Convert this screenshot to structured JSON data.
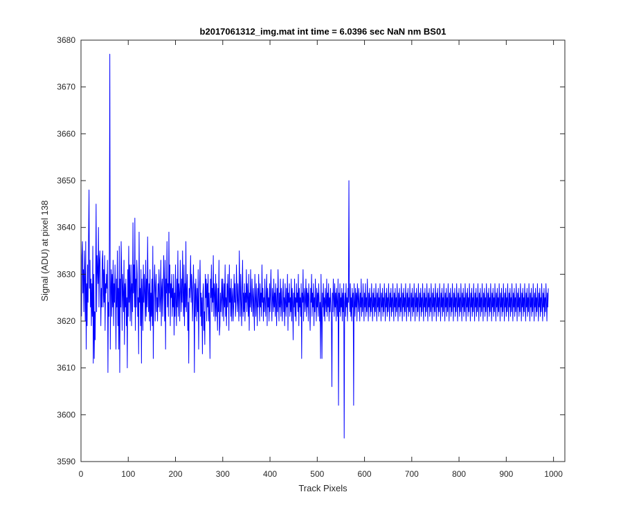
{
  "chart_data": {
    "type": "line",
    "title": "b2017061312_img.mat int time = 6.0396 sec  NaN nm BS01",
    "xlabel": "Track Pixels",
    "ylabel": "Signal (ADU) at pixel 138",
    "xlim": [
      0,
      1024
    ],
    "ylim": [
      3590,
      3680
    ],
    "x_ticks": [
      0,
      100,
      200,
      300,
      400,
      500,
      600,
      700,
      800,
      900,
      1000
    ],
    "y_ticks": [
      3590,
      3600,
      3610,
      3620,
      3630,
      3640,
      3650,
      3660,
      3670,
      3680
    ],
    "grid": false,
    "box": true,
    "line_color": "#0000ff",
    "series": [
      {
        "x_start": 1,
        "x_step": 1,
        "values": [
          3621,
          3634,
          3637,
          3626,
          3631,
          3622,
          3635,
          3629,
          3620,
          3637,
          3614,
          3628,
          3619,
          3632,
          3624,
          3638,
          3648,
          3627,
          3633,
          3623,
          3629,
          3619,
          3628,
          3621,
          3636,
          3611,
          3630,
          3612,
          3622,
          3616,
          3629,
          3645,
          3622,
          3634,
          3631,
          3628,
          3640,
          3623,
          3633,
          3635,
          3629,
          3619,
          3627,
          3623,
          3633,
          3635,
          3623,
          3631,
          3624,
          3634,
          3618,
          3628,
          3626,
          3630,
          3627,
          3633,
          3609,
          3624,
          3621,
          3635,
          3677,
          3614,
          3626,
          3631,
          3621,
          3630,
          3623,
          3633,
          3619,
          3628,
          3624,
          3632,
          3626,
          3614,
          3629,
          3623,
          3635,
          3619,
          3627,
          3614,
          3636,
          3609,
          3629,
          3623,
          3637,
          3631,
          3618,
          3630,
          3626,
          3622,
          3633,
          3615,
          3628,
          3623,
          3629,
          3619,
          3625,
          3610,
          3631,
          3621,
          3636,
          3624,
          3632,
          3620,
          3627,
          3632,
          3619,
          3628,
          3622,
          3641,
          3626,
          3632,
          3623,
          3642,
          3618,
          3629,
          3623,
          3633,
          3630,
          3621,
          3625,
          3613,
          3639,
          3624,
          3627,
          3619,
          3631,
          3611,
          3629,
          3625,
          3618,
          3632,
          3624,
          3630,
          3626,
          3620,
          3633,
          3621,
          3629,
          3623,
          3638,
          3627,
          3622,
          3628,
          3620,
          3631,
          3618,
          3626,
          3621,
          3629,
          3619,
          3636,
          3612,
          3625,
          3628,
          3632,
          3620,
          3627,
          3630,
          3622,
          3625,
          3620,
          3628,
          3623,
          3631,
          3627,
          3622,
          3625,
          3633,
          3619,
          3627,
          3629,
          3621,
          3626,
          3634,
          3628,
          3620,
          3633,
          3614,
          3629,
          3626,
          3637,
          3623,
          3628,
          3621,
          3639,
          3626,
          3632,
          3619,
          3628,
          3625,
          3630,
          3621,
          3627,
          3623,
          3630,
          3617,
          3626,
          3621,
          3632,
          3624,
          3619,
          3629,
          3623,
          3635,
          3621,
          3628,
          3626,
          3620,
          3633,
          3627,
          3622,
          3629,
          3624,
          3635,
          3626,
          3621,
          3632,
          3619,
          3628,
          3623,
          3637,
          3622,
          3626,
          3630,
          3618,
          3624,
          3611,
          3627,
          3625,
          3628,
          3634,
          3624,
          3630,
          3627,
          3620,
          3626,
          3632,
          3625,
          3609,
          3628,
          3621,
          3629,
          3625,
          3620,
          3627,
          3622,
          3631,
          3614,
          3624,
          3628,
          3633,
          3621,
          3626,
          3619,
          3625,
          3613,
          3626,
          3628,
          3618,
          3622,
          3615,
          3630,
          3625,
          3629,
          3620,
          3628,
          3623,
          3630,
          3620,
          3626,
          3621,
          3612,
          3629,
          3625,
          3632,
          3622,
          3627,
          3624,
          3634,
          3621,
          3628,
          3626,
          3620,
          3630,
          3621,
          3628,
          3623,
          3618,
          3627,
          3622,
          3633,
          3617,
          3619,
          3626,
          3622,
          3625,
          3629,
          3621,
          3629,
          3625,
          3620,
          3628,
          3623,
          3632,
          3621,
          3625,
          3619,
          3628,
          3623,
          3630,
          3626,
          3618,
          3632,
          3624,
          3627,
          3621,
          3629,
          3620,
          3625,
          3627,
          3620,
          3623,
          3630,
          3624,
          3628,
          3621,
          3624,
          3632,
          3626,
          3622,
          3628,
          3624,
          3620,
          3635,
          3627,
          3621,
          3630,
          3624,
          3619,
          3627,
          3633,
          3621,
          3626,
          3622,
          3628,
          3620,
          3626,
          3624,
          3631,
          3622,
          3628,
          3625,
          3621,
          3630,
          3618,
          3626,
          3623,
          3631,
          3624,
          3622,
          3629,
          3625,
          3621,
          3627,
          3623,
          3618,
          3630,
          3625,
          3621,
          3628,
          3624,
          3619,
          3627,
          3623,
          3630,
          3625,
          3620,
          3628,
          3623,
          3626,
          3621,
          3632,
          3624,
          3627,
          3620,
          3625,
          3622,
          3629,
          3624,
          3621,
          3626,
          3630,
          3619,
          3627,
          3623,
          3625,
          3620,
          3628,
          3622,
          3626,
          3631,
          3624,
          3620,
          3627,
          3625,
          3622,
          3629,
          3623,
          3626,
          3621,
          3628,
          3624,
          3619,
          3627,
          3622,
          3631,
          3625,
          3620,
          3626,
          3623,
          3629,
          3621,
          3627,
          3624,
          3620,
          3626,
          3629,
          3622,
          3625,
          3619,
          3628,
          3624,
          3621,
          3627,
          3623,
          3630,
          3618,
          3626,
          3624,
          3628,
          3621,
          3625,
          3622,
          3629,
          3620,
          3627,
          3624,
          3616,
          3626,
          3623,
          3629,
          3621,
          3625,
          3620,
          3628,
          3624,
          3626,
          3622,
          3630,
          3619,
          3627,
          3623,
          3625,
          3621,
          3628,
          3612,
          3626,
          3624,
          3631,
          3620,
          3625,
          3627,
          3622,
          3624,
          3629,
          3621,
          3627,
          3623,
          3626,
          3620,
          3628,
          3625,
          3622,
          3618,
          3627,
          3624,
          3630,
          3621,
          3626,
          3623,
          3628,
          3619,
          3625,
          3622,
          3629,
          3624,
          3620,
          3627,
          3623,
          3626,
          3621,
          3628,
          3625,
          3620,
          3624,
          3612,
          3630,
          3622,
          3612,
          3626,
          3623,
          3628,
          3621,
          3625,
          3620,
          3627,
          3624,
          3622,
          3629,
          3621,
          3626,
          3623,
          3628,
          3620,
          3625,
          3622,
          3627,
          3624,
          3620,
          3606,
          3626,
          3622,
          3629,
          3625,
          3621,
          3628,
          3623,
          3626,
          3620,
          3627,
          3624,
          3621,
          3629,
          3602,
          3626,
          3622,
          3628,
          3621,
          3625,
          3623,
          3627,
          3620,
          3626,
          3622,
          3628,
          3595,
          3624,
          3626,
          3621,
          3628,
          3623,
          3625,
          3620,
          3627,
          3624,
          3650,
          3626,
          3622,
          3628,
          3621,
          3625,
          3620,
          3627,
          3623,
          3626,
          3602,
          3628,
          3624,
          3621,
          3627,
          3623,
          3626,
          3620,
          3628,
          3625,
          3622,
          3627,
          3624,
          3620,
          3626,
          3623,
          3629,
          3621,
          3625,
          3622,
          3628,
          3624,
          3620,
          3626,
          3623,
          3628,
          3621,
          3625,
          3622,
          3629,
          3624,
          3620,
          3626,
          3623,
          3627,
          3621,
          3625,
          3622,
          3628,
          3624,
          3620,
          3626,
          3623,
          3627,
          3621,
          3625,
          3622,
          3628,
          3624,
          3620,
          3626,
          3623,
          3627,
          3621,
          3625,
          3622,
          3628,
          3624,
          3620,
          3626,
          3623,
          3627,
          3621,
          3625,
          3622,
          3628,
          3624,
          3620,
          3626,
          3623,
          3627,
          3621,
          3625,
          3622,
          3628,
          3624,
          3620,
          3626,
          3623,
          3627,
          3621,
          3625,
          3622,
          3628,
          3624,
          3620,
          3626,
          3623,
          3627,
          3621,
          3625,
          3622,
          3628,
          3624,
          3620,
          3626,
          3623,
          3627,
          3621,
          3625,
          3622,
          3628,
          3624,
          3620,
          3626,
          3623,
          3627,
          3621,
          3625,
          3622,
          3628,
          3624,
          3620,
          3626,
          3623,
          3627,
          3621,
          3625,
          3622,
          3628,
          3624,
          3620,
          3626,
          3623,
          3627,
          3621,
          3625,
          3622,
          3628,
          3624,
          3620,
          3626,
          3623,
          3627,
          3621,
          3625,
          3622,
          3628,
          3624,
          3620,
          3626,
          3623,
          3627,
          3621,
          3625,
          3622,
          3628,
          3624,
          3620,
          3626,
          3623,
          3627,
          3621,
          3625,
          3622,
          3628,
          3624,
          3620,
          3626,
          3623,
          3627,
          3621,
          3625,
          3622,
          3628,
          3624,
          3620,
          3626,
          3623,
          3627,
          3621,
          3625,
          3622,
          3628,
          3624,
          3620,
          3626,
          3623,
          3627,
          3621,
          3625,
          3622,
          3628,
          3624,
          3620,
          3626,
          3623,
          3627,
          3621,
          3625,
          3622,
          3628,
          3624,
          3620,
          3626,
          3623,
          3627,
          3621,
          3625,
          3622,
          3628,
          3624,
          3620,
          3626,
          3623,
          3627,
          3621,
          3625,
          3622,
          3628,
          3624,
          3620,
          3626,
          3623,
          3627,
          3621,
          3625,
          3622,
          3628,
          3624,
          3620,
          3626,
          3623,
          3627,
          3621,
          3625,
          3622,
          3628,
          3624,
          3620,
          3626,
          3623,
          3627,
          3621,
          3625,
          3622,
          3628,
          3624,
          3620,
          3626,
          3623,
          3627,
          3621,
          3625,
          3622,
          3628,
          3624,
          3620,
          3626,
          3623,
          3627,
          3621,
          3625,
          3622,
          3628,
          3624,
          3620,
          3626,
          3623,
          3627,
          3621,
          3625,
          3622,
          3628,
          3624,
          3620,
          3626,
          3623,
          3627,
          3621,
          3625,
          3622,
          3628,
          3624,
          3620,
          3626,
          3623,
          3627,
          3621,
          3625,
          3622,
          3628,
          3624,
          3620,
          3626,
          3623,
          3627,
          3621,
          3625,
          3622,
          3628,
          3624,
          3620,
          3626,
          3623,
          3627,
          3621,
          3625,
          3622,
          3628,
          3624,
          3620,
          3626,
          3623,
          3627,
          3621,
          3625,
          3622,
          3628,
          3624,
          3620,
          3626,
          3623,
          3627,
          3621,
          3625,
          3622,
          3628,
          3624,
          3620,
          3626,
          3623,
          3627,
          3621,
          3625,
          3622,
          3628,
          3624,
          3620,
          3626,
          3623,
          3627,
          3621,
          3625,
          3622,
          3628,
          3624,
          3620,
          3626,
          3623,
          3627,
          3621,
          3625,
          3622,
          3628,
          3624,
          3620,
          3626,
          3623,
          3627,
          3621,
          3625,
          3622,
          3628,
          3624,
          3620,
          3626,
          3623,
          3627,
          3621,
          3625,
          3622,
          3628,
          3624,
          3620,
          3626,
          3623,
          3627,
          3621,
          3625,
          3622,
          3628,
          3624,
          3620,
          3626,
          3623,
          3627,
          3621,
          3625,
          3622,
          3628,
          3624,
          3620,
          3626,
          3623,
          3627,
          3621,
          3625,
          3622,
          3628,
          3624,
          3620,
          3626,
          3623,
          3627,
          3621,
          3625,
          3622,
          3628,
          3624,
          3620,
          3626,
          3623,
          3627,
          3621,
          3625,
          3622,
          3628,
          3624,
          3620,
          3626,
          3623,
          3627
        ]
      }
    ],
    "annotations_of_note": [
      {
        "x": 60,
        "y": 3677
      },
      {
        "x": 248,
        "y": 3601
      },
      {
        "x": 560,
        "y": 3595
      },
      {
        "x": 569,
        "y": 3650
      }
    ]
  }
}
